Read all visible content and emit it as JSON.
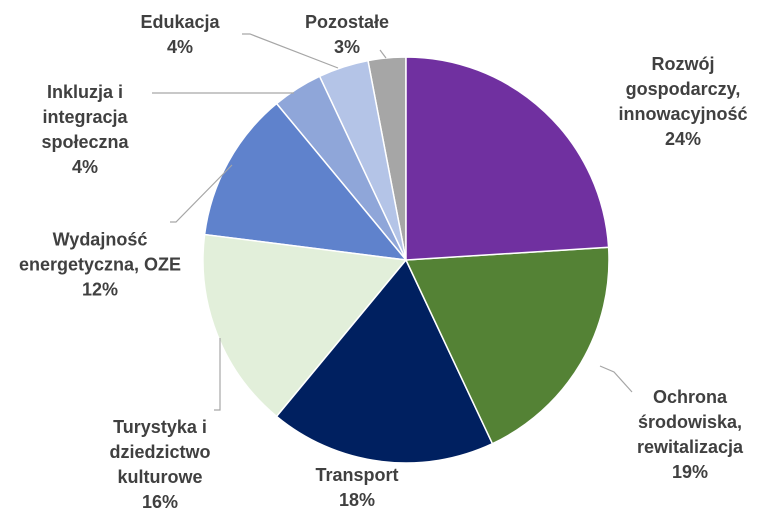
{
  "chart_data": {
    "type": "pie",
    "categories": [
      "Rozwój gospodarczy, innowacyjność",
      "Ochrona środowiska, rewitalizacja",
      "Transport",
      "Turystyka i dziedzictwo kulturowe",
      "Wydajność energetyczna, OZE",
      "Inkluzja i integracja społeczna",
      "Edukacja",
      "Pozostałe"
    ],
    "values": [
      24,
      19,
      18,
      16,
      12,
      4,
      4,
      3
    ],
    "value_labels": [
      "24%",
      "19%",
      "18%",
      "16%",
      "12%",
      "4%",
      "4%",
      "3%"
    ],
    "colors": [
      "#7030a0",
      "#548235",
      "#002060",
      "#e2efda",
      "#5f82cc",
      "#8fa6d9",
      "#b4c4e7",
      "#a6a6a6"
    ]
  }
}
